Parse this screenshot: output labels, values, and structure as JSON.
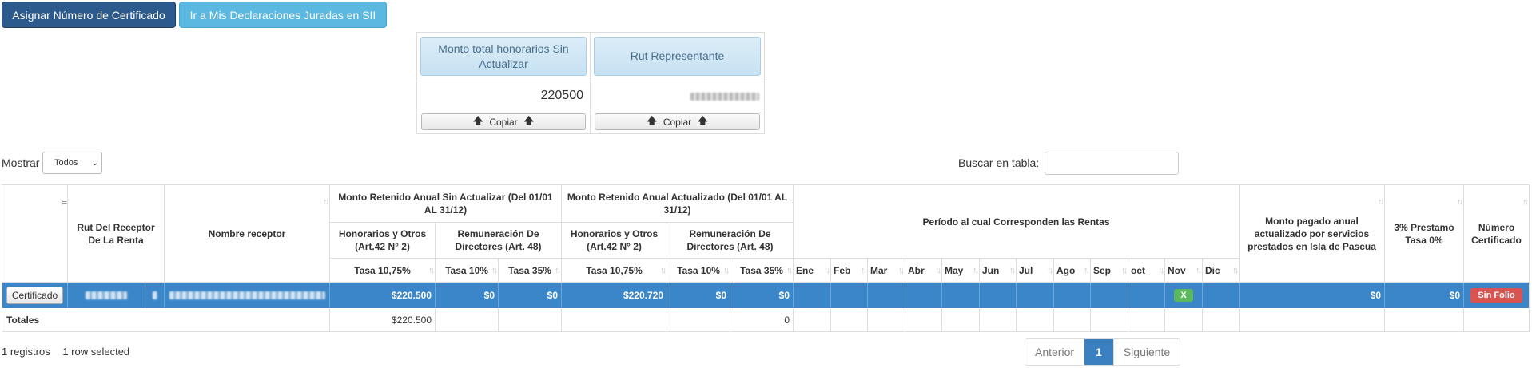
{
  "top_buttons": {
    "assign": "Asignar Número de Certificado",
    "sii": "Ir a Mis Declaraciones Juradas en SII"
  },
  "summary": {
    "col1_header": "Monto total honorarios Sin Actualizar",
    "col1_value": "220500",
    "col2_header": "Rut Representante",
    "copy_label": "Copiar"
  },
  "controls": {
    "show_label": "Mostrar",
    "show_value": "Todos",
    "search_label": "Buscar en tabla:"
  },
  "table": {
    "headers": {
      "rut": "Rut Del Receptor De La Renta",
      "nombre": "Nombre receptor",
      "sin_actualizar": "Monto Retenido Anual Sin Actualizar (Del 01/01 AL 31/12)",
      "actualizado": "Monto Retenido Anual Actualizado (Del 01/01 AL 31/12)",
      "honorarios": "Honorarios y Otros (Art.42 N° 2)",
      "remuneracion": "Remuneración De Directores (Art. 48)",
      "tasa_1075": "Tasa 10,75%",
      "tasa_10": "Tasa 10%",
      "tasa_35": "Tasa 35%",
      "periodo": "Período al cual Corresponden las Rentas",
      "months": [
        "Ene",
        "Feb",
        "Mar",
        "Abr",
        "May",
        "Jun",
        "Jul",
        "Ago",
        "Sep",
        "oct",
        "Nov",
        "Dic"
      ],
      "isla_pascua": "Monto pagado anual actualizado por servicios prestados en Isla de Pascua",
      "prestamo": "3% Prestamo Tasa 0%",
      "numero_cert": "Número Certificado"
    },
    "row": {
      "cert_button": "Certificado",
      "sa_tasa_1075": "$220.500",
      "sa_tasa_10": "$0",
      "sa_tasa_35": "$0",
      "ac_tasa_1075": "$220.720",
      "ac_tasa_10": "$0",
      "ac_tasa_35": "$0",
      "month_mark": "X",
      "isla_pascua": "$0",
      "prestamo": "$0",
      "folio": "Sin Folio"
    },
    "totals": {
      "label": "Totales",
      "sa_tasa_1075": "$220.500",
      "ac_tasa_35": "0"
    }
  },
  "footer": {
    "records": "1 registros",
    "selected": "1 row selected",
    "prev": "Anterior",
    "page": "1",
    "next": "Siguiente"
  },
  "colors": {
    "primary": "#2d5a8c",
    "info": "#5bb8e0",
    "row_selected": "#3a86c8",
    "success": "#5cb85c",
    "danger": "#d9534f"
  }
}
